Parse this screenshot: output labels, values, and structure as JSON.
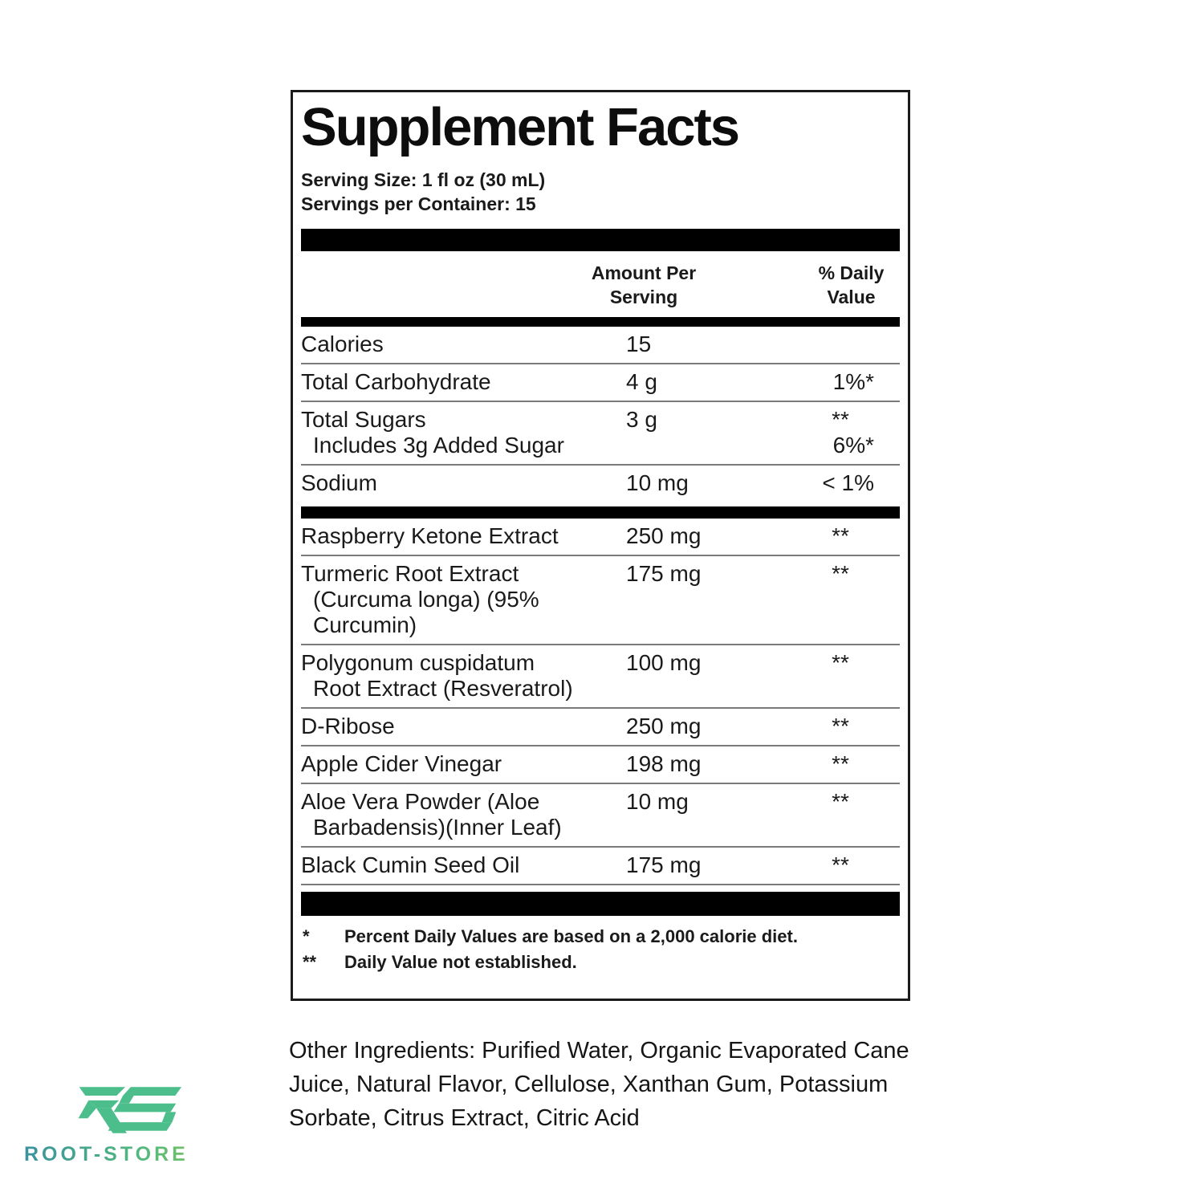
{
  "panel": {
    "title": "Supplement Facts",
    "serving_size": "Serving Size: 1 fl oz (30 mL)",
    "servings_per_container": "Servings per Container: 15",
    "columns": {
      "amount": "Amount Per Serving",
      "daily_value": "% Daily Value"
    },
    "nutrient_rows": [
      {
        "lines": [
          "Calories"
        ],
        "amount": "15",
        "dv": ""
      },
      {
        "lines": [
          "Total Carbohydrate"
        ],
        "amount": "4 g",
        "dv": "1%*"
      },
      {
        "lines": [
          "Total Sugars",
          "Includes 3g Added Sugar"
        ],
        "amount": "3 g",
        "dv": "**",
        "sub_dv": "6%*"
      },
      {
        "lines": [
          "Sodium"
        ],
        "amount": "10 mg",
        "dv": "< 1%"
      }
    ],
    "ingredient_rows": [
      {
        "lines": [
          "Raspberry Ketone Extract"
        ],
        "amount": "250 mg",
        "dv": "**"
      },
      {
        "lines": [
          "Turmeric Root Extract",
          "(Curcuma longa)  (95%",
          "Curcumin)"
        ],
        "amount": "175 mg",
        "dv": "**"
      },
      {
        "lines": [
          "Polygonum cuspidatum",
          "Root Extract (Resveratrol)"
        ],
        "amount": "100 mg",
        "dv": "**"
      },
      {
        "lines": [
          "D-Ribose"
        ],
        "amount": "250 mg",
        "dv": "**"
      },
      {
        "lines": [
          "Apple Cider Vinegar"
        ],
        "amount": "198 mg",
        "dv": "**"
      },
      {
        "lines": [
          "Aloe Vera Powder (Aloe",
          "Barbadensis)(Inner Leaf)"
        ],
        "amount": "10 mg",
        "dv": "**"
      },
      {
        "lines": [
          "Black Cumin Seed Oil"
        ],
        "amount": "175 mg",
        "dv": "**"
      }
    ],
    "footnotes": [
      {
        "marker": "*",
        "text": "Percent Daily Values are based on a 2,000 calorie diet."
      },
      {
        "marker": "**",
        "text": "Daily Value not established."
      }
    ]
  },
  "other_ingredients": "Other Ingredients: Purified Water, Organic Evaporated Cane Juice, Natural Flavor, Cellulose, Xanthan Gum, Potassium Sorbate, Citrus Extract, Citric Acid",
  "brand": {
    "logo_monogram": "RS",
    "logo_text": "ROOT-STORE",
    "logo_green": "#4cbe8c",
    "logo_gradient_start": "#39929e",
    "logo_gradient_end": "#8bc653"
  }
}
